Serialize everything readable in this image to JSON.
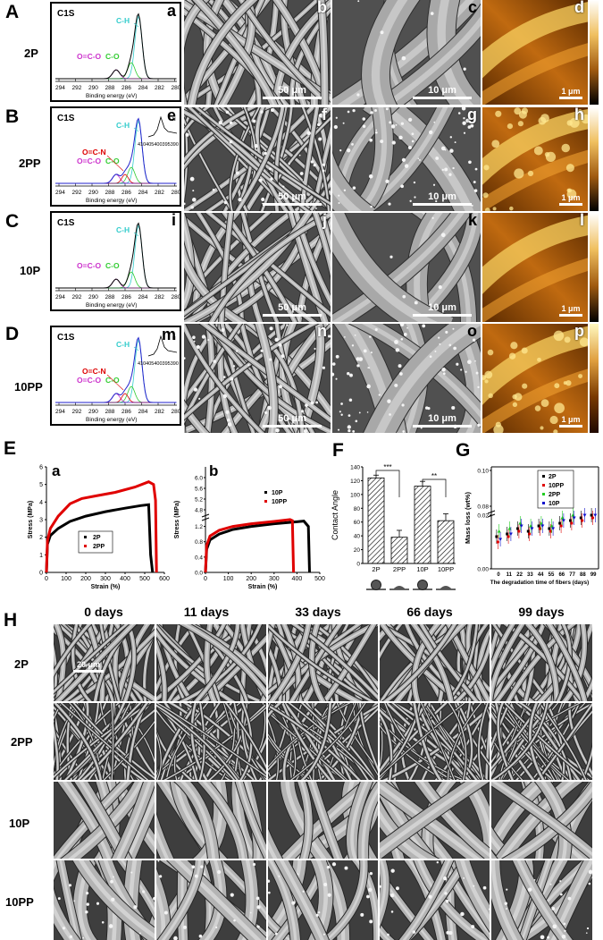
{
  "panel_labels": {
    "A": "A",
    "B": "B",
    "C": "C",
    "D": "D",
    "E": "E",
    "F": "F",
    "G": "G",
    "H": "H"
  },
  "row_labels": [
    "2P",
    "2PP",
    "10P",
    "10PP"
  ],
  "sublabels": {
    "row1": [
      "a",
      "b",
      "c",
      "d"
    ],
    "row2": [
      "e",
      "f",
      "g",
      "h"
    ],
    "row3": [
      "i",
      "j",
      "k",
      "l"
    ],
    "row4": [
      "m",
      "n",
      "o",
      "p"
    ],
    "E": [
      "a",
      "b"
    ]
  },
  "scalebars": {
    "low": "50 μm",
    "high": "10 μm",
    "afm": "1 μm",
    "H": "20 μm"
  },
  "xps": {
    "title": "C1S",
    "xlabel": "Binding energy (eV)",
    "ticks": [
      "294",
      "292",
      "290",
      "288",
      "286",
      "284",
      "282",
      "280"
    ],
    "peaks": {
      "ch": "C-H",
      "co": "C-O",
      "oco": "O=C-O",
      "ocn": "O=C-N"
    },
    "inset_ticks": "410405400395390",
    "inset_label": "N"
  },
  "colors": {
    "ch": "#33cccc",
    "co": "#33cc33",
    "oco": "#cc33cc",
    "ocn": "#dd0000",
    "exp2P": "#000000",
    "exp2PP": "#e00000",
    "exp10PP": "#2222cc"
  },
  "chart_data": [
    {
      "type": "line",
      "id": "E-a",
      "xlabel": "Strain (%)",
      "ylabel": "Stress (MPa)",
      "xticks": [
        "0",
        "100",
        "200",
        "300",
        "400",
        "500",
        "600"
      ],
      "yticks": [
        "0",
        "1",
        "2",
        "3",
        "4",
        "5",
        "6"
      ],
      "xlim": [
        0,
        600
      ],
      "ylim": [
        0,
        6
      ],
      "series": [
        {
          "name": "2P",
          "color": "#000000",
          "x": [
            0,
            5,
            20,
            60,
            120,
            200,
            300,
            400,
            480,
            520,
            530,
            540
          ],
          "y": [
            0,
            1.6,
            2.1,
            2.5,
            2.9,
            3.2,
            3.45,
            3.65,
            3.8,
            3.85,
            1.0,
            0
          ]
        },
        {
          "name": "2PP",
          "color": "#e00000",
          "x": [
            0,
            5,
            20,
            60,
            120,
            180,
            250,
            350,
            450,
            520,
            545,
            555,
            560
          ],
          "y": [
            0,
            1.8,
            2.5,
            3.2,
            3.9,
            4.2,
            4.35,
            4.55,
            4.85,
            5.15,
            5.0,
            4.1,
            0
          ]
        }
      ]
    },
    {
      "type": "line",
      "id": "E-b",
      "xlabel": "Strain (%)",
      "ylabel": "Stress (MPa)",
      "xticks": [
        "0",
        "100",
        "200",
        "300",
        "400",
        "500"
      ],
      "yticks_low": [
        "0.0",
        "0.4",
        "0.8",
        "1.2"
      ],
      "yticks_high": [
        "4.8",
        "5.2",
        "5.6",
        "6.0"
      ],
      "xlim": [
        0,
        500
      ],
      "series": [
        {
          "name": "10P",
          "color": "#000000",
          "x": [
            0,
            5,
            20,
            60,
            120,
            200,
            300,
            400,
            430,
            450,
            455
          ],
          "y": [
            0,
            0.6,
            0.85,
            1.0,
            1.12,
            1.2,
            1.27,
            1.32,
            1.34,
            1.2,
            0
          ]
        },
        {
          "name": "10PP",
          "color": "#e00000",
          "x": [
            0,
            5,
            20,
            60,
            120,
            200,
            300,
            370,
            380,
            385
          ],
          "y": [
            0,
            0.7,
            0.95,
            1.1,
            1.2,
            1.27,
            1.33,
            1.38,
            1.35,
            0
          ]
        }
      ]
    },
    {
      "type": "bar",
      "id": "F",
      "ylabel": "Contact Angle",
      "categories": [
        "2P",
        "2PP",
        "10P",
        "10PP"
      ],
      "values": [
        124,
        38,
        112,
        62
      ],
      "errors": [
        4,
        10,
        7,
        10
      ],
      "ylim": [
        0,
        140
      ],
      "yticks": [
        "0",
        "20",
        "40",
        "60",
        "80",
        "100",
        "120",
        "140"
      ],
      "significance": [
        "***",
        "**"
      ]
    },
    {
      "type": "scatter",
      "id": "G",
      "xlabel": "The degradation time of fibers (days)",
      "ylabel": "Mass loss (wt%)",
      "xticks": [
        "0",
        "11",
        "22",
        "33",
        "44",
        "55",
        "66",
        "77",
        "88",
        "99"
      ],
      "yticks": [
        "0.00",
        "0.02",
        "0.08",
        "0.10"
      ],
      "series": [
        {
          "name": "2P",
          "color": "#000000",
          "symbol": "square",
          "values": [
            0.012,
            0.013,
            0.015,
            0.014,
            0.016,
            0.015,
            0.017,
            0.018,
            0.019,
            0.02
          ]
        },
        {
          "name": "10PP",
          "color": "#e00000",
          "symbol": "circle",
          "values": [
            0.01,
            0.012,
            0.014,
            0.013,
            0.015,
            0.014,
            0.016,
            0.017,
            0.018,
            0.019
          ]
        },
        {
          "name": "2PP",
          "color": "#22cc22",
          "symbol": "triangle",
          "values": [
            0.014,
            0.015,
            0.017,
            0.016,
            0.017,
            0.016,
            0.019,
            0.02,
            0.021,
            0.021
          ]
        },
        {
          "name": "10P",
          "color": "#1111cc",
          "symbol": "triangle-down",
          "values": [
            0.011,
            0.013,
            0.016,
            0.015,
            0.016,
            0.015,
            0.018,
            0.019,
            0.02,
            0.02
          ]
        }
      ]
    }
  ],
  "H": {
    "headers": [
      "0 days",
      "11 days",
      "33 days",
      "66 days",
      "99 days"
    ],
    "rows": [
      "2P",
      "2PP",
      "10P",
      "10PP"
    ]
  }
}
